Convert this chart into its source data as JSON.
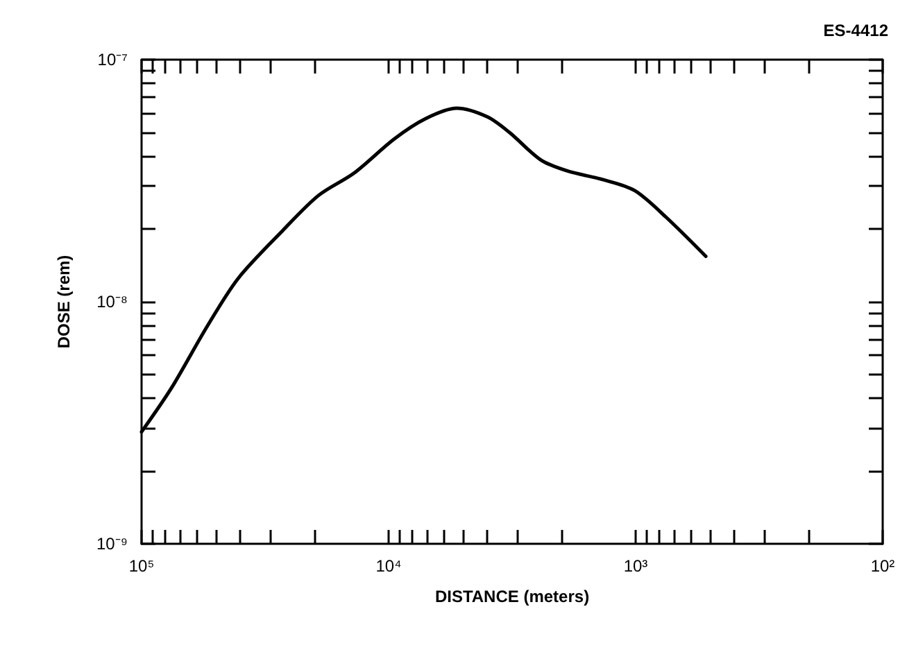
{
  "chart_data": {
    "type": "line",
    "xlabel": "DISTANCE (meters)",
    "ylabel": "DOSE (rem)",
    "annotations": [
      "ES-4412"
    ],
    "log": "xy",
    "grid": false,
    "marker": "none",
    "line_style": "solid",
    "xlim": [
      100000,
      100
    ],
    "ylim": [
      1e-09,
      1e-07
    ],
    "xticks": [
      {
        "value": 100000,
        "label": "10⁵"
      },
      {
        "value": 90000,
        "label": null
      },
      {
        "value": 80000,
        "label": null
      },
      {
        "value": 70000,
        "label": null
      },
      {
        "value": 60000,
        "label": null
      },
      {
        "value": 50000,
        "label": null
      },
      {
        "value": 40000,
        "label": null
      },
      {
        "value": 30000,
        "label": null
      },
      {
        "value": 20000,
        "label": null
      },
      {
        "value": 10000,
        "label": "10⁴"
      },
      {
        "value": 9000,
        "label": null
      },
      {
        "value": 8000,
        "label": null
      },
      {
        "value": 7000,
        "label": null
      },
      {
        "value": 6000,
        "label": null
      },
      {
        "value": 5000,
        "label": null
      },
      {
        "value": 4000,
        "label": null
      },
      {
        "value": 3000,
        "label": null
      },
      {
        "value": 2000,
        "label": null
      },
      {
        "value": 1000,
        "label": "10³"
      },
      {
        "value": 900,
        "label": null
      },
      {
        "value": 800,
        "label": null
      },
      {
        "value": 700,
        "label": null
      },
      {
        "value": 600,
        "label": null
      },
      {
        "value": 500,
        "label": null
      },
      {
        "value": 400,
        "label": null
      },
      {
        "value": 300,
        "label": null
      },
      {
        "value": 200,
        "label": null
      },
      {
        "value": 100,
        "label": "10²"
      }
    ],
    "yticks": [
      {
        "value": 1e-09,
        "label": "10⁻⁹"
      },
      {
        "value": 2e-09,
        "label": null
      },
      {
        "value": 3e-09,
        "label": null
      },
      {
        "value": 4e-09,
        "label": null
      },
      {
        "value": 5e-09,
        "label": null
      },
      {
        "value": 6e-09,
        "label": null
      },
      {
        "value": 7e-09,
        "label": null
      },
      {
        "value": 8e-09,
        "label": null
      },
      {
        "value": 9e-09,
        "label": null
      },
      {
        "value": 1e-08,
        "label": "10⁻⁸"
      },
      {
        "value": 2e-08,
        "label": null
      },
      {
        "value": 3e-08,
        "label": null
      },
      {
        "value": 4e-08,
        "label": null
      },
      {
        "value": 5e-08,
        "label": null
      },
      {
        "value": 6e-08,
        "label": null
      },
      {
        "value": 7e-08,
        "label": null
      },
      {
        "value": 8e-08,
        "label": null
      },
      {
        "value": 9e-08,
        "label": null
      },
      {
        "value": 1e-07,
        "label": "10⁻⁷"
      }
    ],
    "series": [
      {
        "color": "#000000",
        "x": [
          100000,
          75700,
          54300,
          40600,
          26800,
          19200,
          13800,
          9500,
          7100,
          5300,
          3980,
          3240,
          2420,
          1890,
          1350,
          1010,
          755,
          520
        ],
        "values": [
          2.9e-09,
          4.4e-09,
          7.9e-09,
          1.25e-08,
          1.97e-08,
          2.75e-08,
          3.4e-08,
          4.7e-08,
          5.7e-08,
          6.3e-08,
          5.8e-08,
          5e-08,
          3.85e-08,
          3.47e-08,
          3.19e-08,
          2.88e-08,
          2.24e-08,
          1.54e-08
        ]
      }
    ]
  }
}
